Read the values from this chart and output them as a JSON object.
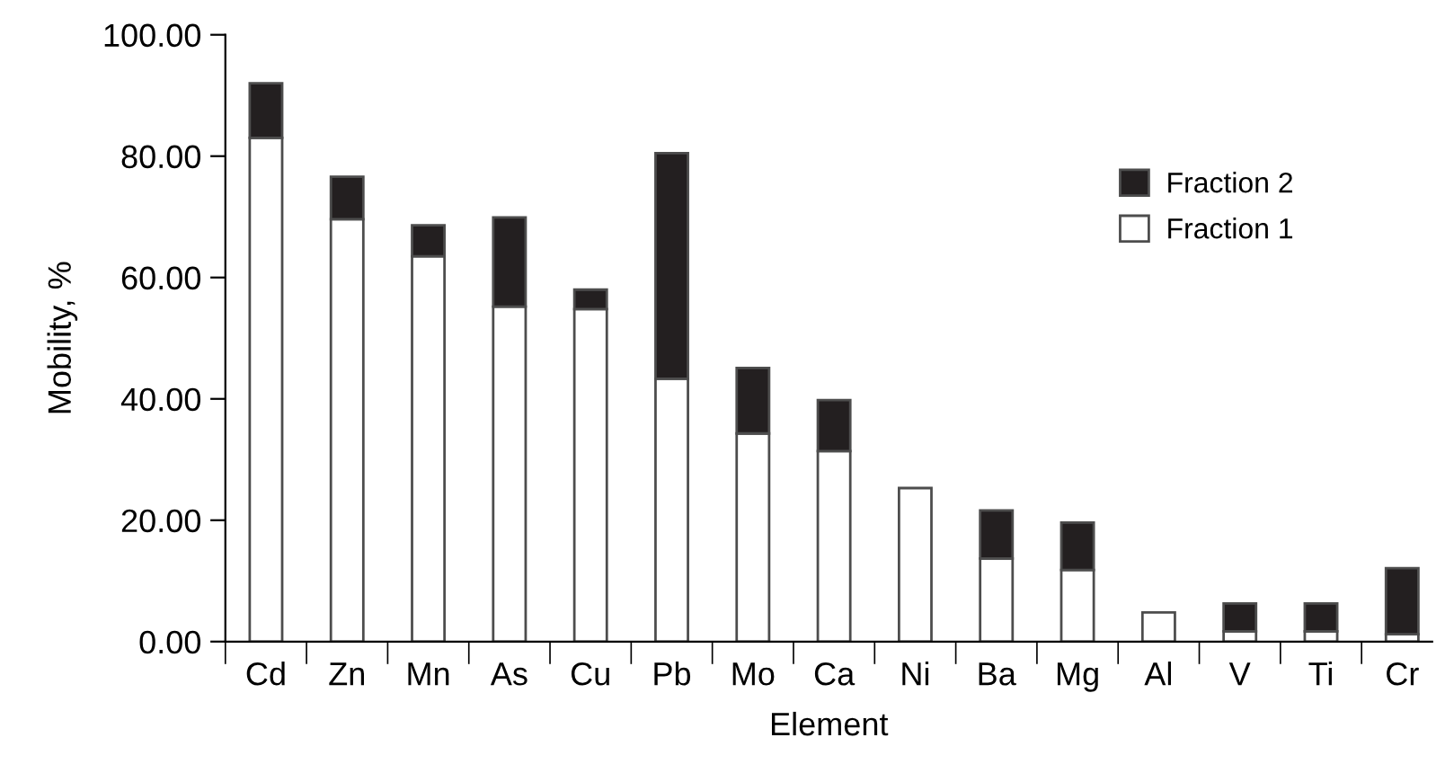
{
  "chart_data": {
    "type": "bar",
    "stacked": true,
    "xlabel": "Element",
    "ylabel": "Mobility, %",
    "categories": [
      "Cd",
      "Zn",
      "Mn",
      "As",
      "Cu",
      "Pb",
      "Mo",
      "Ca",
      "Ni",
      "Ba",
      "Mg",
      "Al",
      "V",
      "Ti",
      "Cr"
    ],
    "series": [
      {
        "name": "Fraction 1",
        "color": "#ffffff",
        "values": [
          83.0,
          69.6,
          63.5,
          55.2,
          54.8,
          43.3,
          34.3,
          31.4,
          25.3,
          13.7,
          11.8,
          4.8,
          1.7,
          1.7,
          1.2
        ]
      },
      {
        "name": "Fraction 2",
        "color": "#231f20",
        "values": [
          9.0,
          7.0,
          5.1,
          14.7,
          3.2,
          37.2,
          10.8,
          8.4,
          0,
          7.9,
          7.8,
          0,
          4.6,
          4.6,
          10.9
        ]
      }
    ],
    "ylim": [
      0,
      100
    ],
    "yticks": [
      {
        "value": 0,
        "label": "0.00"
      },
      {
        "value": 20,
        "label": "20.00"
      },
      {
        "value": 40,
        "label": "40.00"
      },
      {
        "value": 60,
        "label": "60.00"
      },
      {
        "value": 80,
        "label": "80.00"
      },
      {
        "value": 100,
        "label": "100.00"
      }
    ],
    "grid": false,
    "legend": "top right"
  }
}
